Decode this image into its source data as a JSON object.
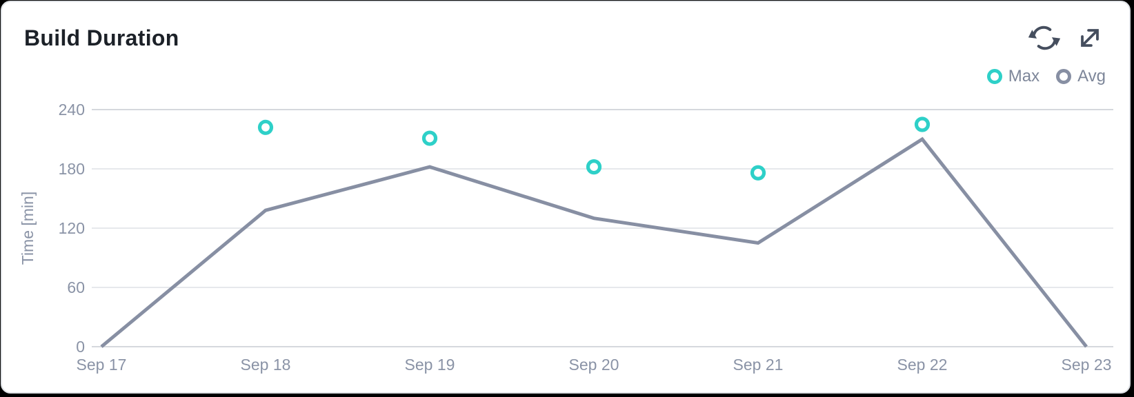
{
  "card": {
    "title": "Build Duration",
    "actions": [
      {
        "icon": "refresh-icon"
      },
      {
        "icon": "expand-icon"
      }
    ]
  },
  "colors": {
    "max_accent": "#2ed0c8",
    "avg_line": "#878fa3",
    "axis_text": "#8a93a6",
    "icon": "#454e5e"
  },
  "chart_data": {
    "type": "line",
    "title": "Build Duration",
    "xlabel": "",
    "ylabel": "Time [min]",
    "categories": [
      "Sep 17",
      "Sep 18",
      "Sep 19",
      "Sep 20",
      "Sep 21",
      "Sep 22",
      "Sep 23"
    ],
    "ylim": [
      0,
      240
    ],
    "yticks": [
      0,
      60,
      120,
      180,
      240
    ],
    "grid": "horizontal",
    "legend_position": "top-right",
    "series": [
      {
        "name": "Max",
        "type": "scatter",
        "color": "#2ed0c8",
        "values": [
          null,
          222,
          211,
          182,
          176,
          225,
          null
        ]
      },
      {
        "name": "Avg",
        "type": "line",
        "color": "#878fa3",
        "values": [
          0,
          138,
          182,
          130,
          105,
          210,
          0
        ]
      }
    ]
  }
}
